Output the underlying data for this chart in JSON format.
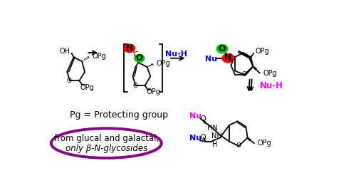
{
  "bg_color": "#ffffff",
  "purple_color": "#8B008B",
  "magenta_color": "#FF00FF",
  "blue_color": "#0000FF",
  "red_color": "#FF0000",
  "green_color": "#00CC00",
  "black_color": "#000000",
  "ellipse_text_line1": "from glucal and galactal,",
  "ellipse_text_line2": "only β-N-glycosides",
  "pg_text": "Pg = Protecting group"
}
